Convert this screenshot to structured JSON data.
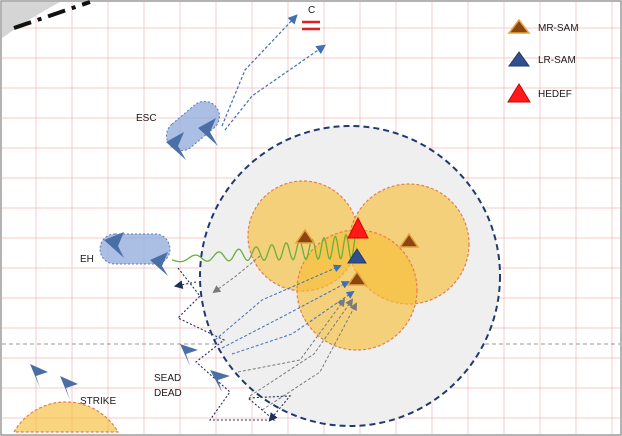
{
  "legend": {
    "items": [
      {
        "label": "MR-SAM",
        "fill": "#8B4513",
        "stroke": "#E8A33C"
      },
      {
        "label": "LR-SAM",
        "fill": "#2F4F8F",
        "stroke": "#2F4F8F"
      },
      {
        "label": "HEDEF",
        "fill": "#FF1A1A",
        "stroke": "#FF1A1A"
      }
    ]
  },
  "labels": {
    "c": "C",
    "esc": "ESC",
    "eh": "EH",
    "sead": "SEAD",
    "dead": "DEAD",
    "strike": "STRIKE"
  },
  "colors": {
    "grid": "#F2B8B8",
    "threat_zone": "#F6BF3A",
    "threat_edge": "#E77D4B",
    "outer_ring": "#1F3A6E",
    "aircraft": "#4A6FA5",
    "jamming": "#6AAF3D"
  }
}
